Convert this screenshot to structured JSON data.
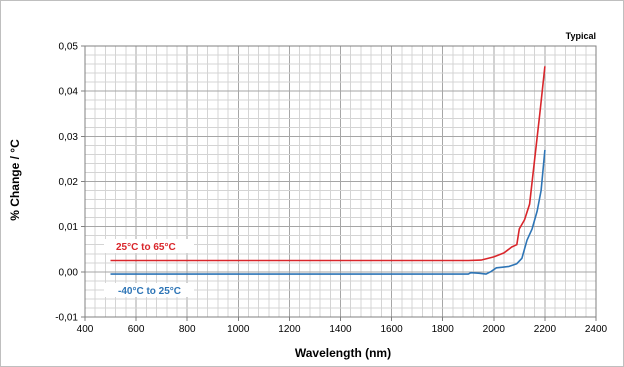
{
  "chart_data": {
    "type": "line",
    "title": "",
    "annotation": "Typical",
    "xlabel": "Wavelength (nm)",
    "ylabel": "% Change / °C",
    "xlim": [
      400,
      2400
    ],
    "ylim": [
      -0.01,
      0.05
    ],
    "x_ticks": [
      400,
      600,
      800,
      1000,
      1200,
      1400,
      1600,
      1800,
      2000,
      2200,
      2400
    ],
    "x_tick_labels": [
      "400",
      "600",
      "800",
      "1000",
      "1200",
      "1400",
      "1600",
      "1800",
      "2000",
      "2200",
      "2400"
    ],
    "y_ticks": [
      -0.01,
      0,
      0.01,
      0.02,
      0.03,
      0.04,
      0.05
    ],
    "y_tick_labels": [
      "-0,01",
      "0,00",
      "0,01",
      "0,02",
      "0,03",
      "0,04",
      "0,05"
    ],
    "grid": true,
    "series": [
      {
        "name": "25°C to 65°C",
        "color": "#d9262b",
        "x": [
          500,
          1900,
          1950,
          2000,
          2040,
          2070,
          2090,
          2100,
          2120,
          2140,
          2160,
          2180,
          2200
        ],
        "y": [
          0.0025,
          0.0025,
          0.0026,
          0.0033,
          0.0042,
          0.0055,
          0.006,
          0.0095,
          0.0115,
          0.015,
          0.025,
          0.035,
          0.0455
        ]
      },
      {
        "name": "-40°C to 25°C",
        "color": "#2e75b6",
        "x": [
          500,
          1900,
          1910,
          1940,
          1970,
          1990,
          2010,
          2030,
          2060,
          2090,
          2110,
          2130,
          2150,
          2170,
          2185,
          2200
        ],
        "y": [
          -0.0005,
          -0.0005,
          -0.0002,
          -0.0003,
          -0.0005,
          0.0001,
          0.0009,
          0.001,
          0.0012,
          0.0018,
          0.003,
          0.007,
          0.0095,
          0.0135,
          0.018,
          0.027
        ]
      }
    ]
  }
}
